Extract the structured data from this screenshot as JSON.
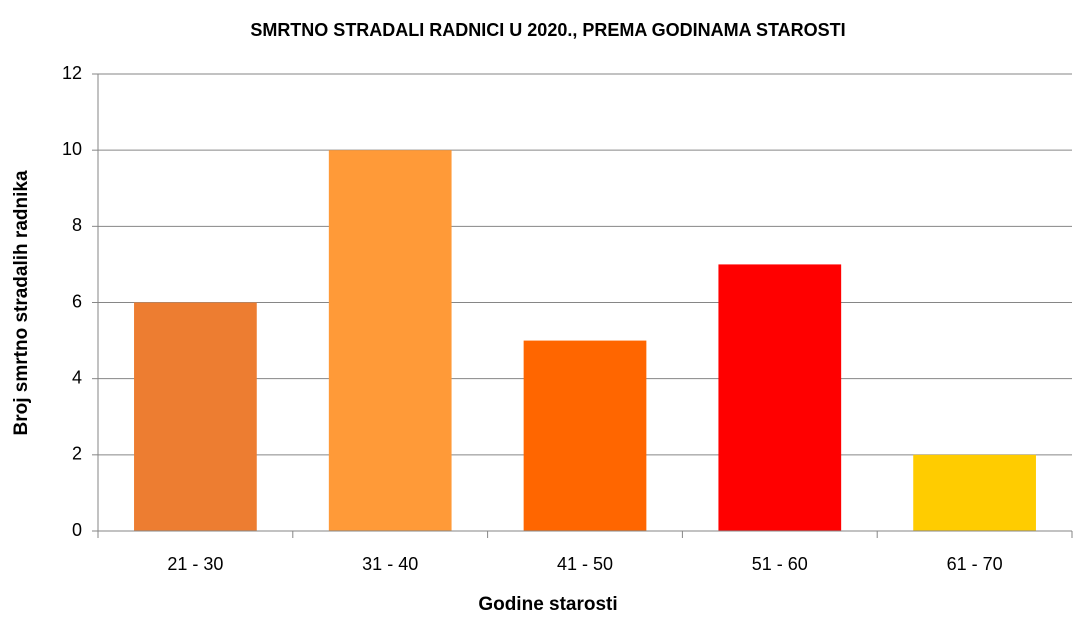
{
  "chart_data": {
    "type": "bar",
    "title": "SMRTNO STRADALI RADNICI U 2020., PREMA GODINAMA STAROSTI",
    "x_label": "Godine starosti",
    "y_label": "Broj smrtno stradalih radnika",
    "categories": [
      "21 - 30",
      "31 - 40",
      "41 - 50",
      "51 - 60",
      "61 - 70"
    ],
    "values": [
      6,
      10,
      5,
      7,
      2
    ],
    "colors": [
      "#ED7D31",
      "#FF9A38",
      "#FF6600",
      "#FF0000",
      "#FFCC00"
    ],
    "ylim": [
      0,
      12
    ],
    "yticks": [
      0,
      2,
      4,
      6,
      8,
      10,
      12
    ],
    "grid": true
  }
}
